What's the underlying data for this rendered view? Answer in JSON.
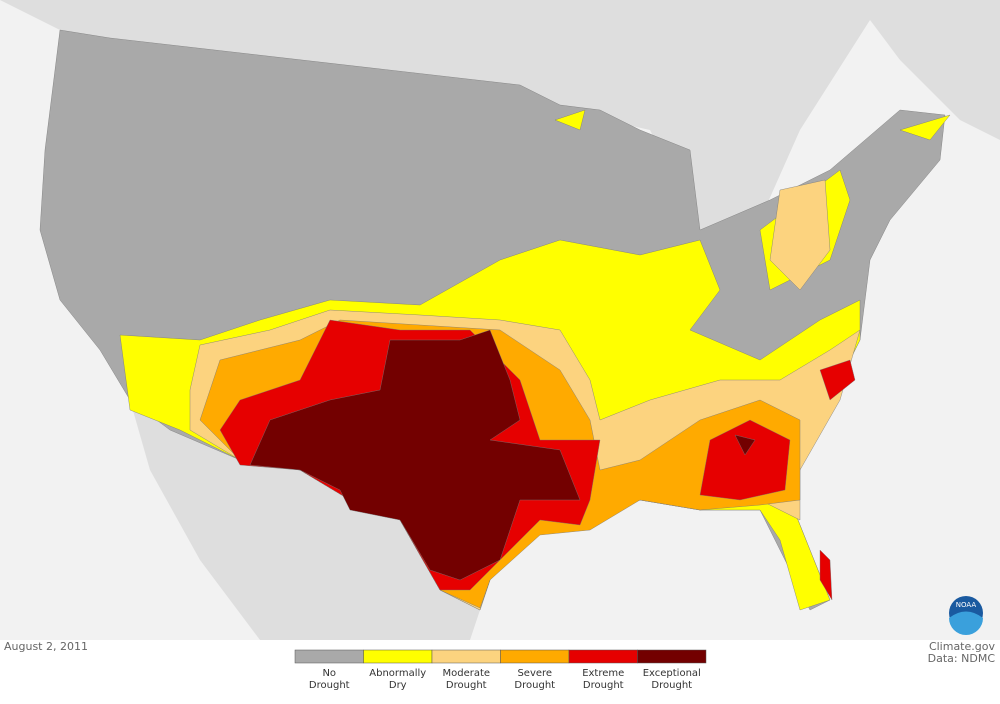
{
  "date": "August 2, 2011",
  "credit": {
    "source": "Climate.gov",
    "data": "Data: NDMC"
  },
  "logo_text": "NOAA",
  "legend": [
    {
      "lines": [
        "No",
        "Drought"
      ],
      "color": "#a9a9a9"
    },
    {
      "lines": [
        "Abnormally",
        "Dry"
      ],
      "color": "#ffff00"
    },
    {
      "lines": [
        "Moderate",
        "Drought"
      ],
      "color": "#fcd37f"
    },
    {
      "lines": [
        "Severe",
        "Drought"
      ],
      "color": "#ffaa00"
    },
    {
      "lines": [
        "Extreme",
        "Drought"
      ],
      "color": "#e60000"
    },
    {
      "lines": [
        "Exceptional",
        "Drought"
      ],
      "color": "#730000"
    }
  ]
}
